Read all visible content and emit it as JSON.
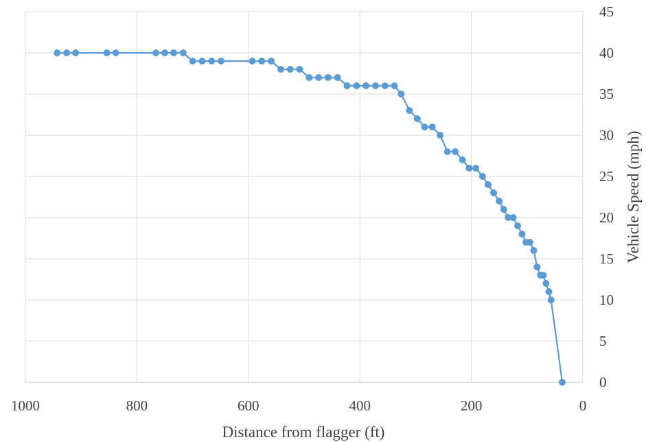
{
  "chart_data": {
    "type": "line",
    "title": "",
    "xlabel": "Distance from flagger (ft)",
    "ylabel": "Vehicle Speed (mph)",
    "xlim": [
      1000,
      0
    ],
    "x_reversed": true,
    "ylim": [
      0,
      45
    ],
    "x_ticks": [
      1000,
      800,
      600,
      400,
      200,
      0
    ],
    "y_ticks": [
      0,
      5,
      10,
      15,
      20,
      25,
      30,
      35,
      40,
      45
    ],
    "y_axis_side": "right",
    "grid": true,
    "legend": "none",
    "series_color": "#5b9bd5",
    "series": [
      {
        "points": [
          [
            943,
            40
          ],
          [
            926,
            40
          ],
          [
            910,
            40
          ],
          [
            854,
            40
          ],
          [
            838,
            40
          ],
          [
            766,
            40
          ],
          [
            750,
            40
          ],
          [
            734,
            40
          ],
          [
            717,
            40
          ],
          [
            700,
            39
          ],
          [
            683,
            39
          ],
          [
            666,
            39
          ],
          [
            649,
            39
          ],
          [
            593,
            39
          ],
          [
            576,
            39
          ],
          [
            559,
            39
          ],
          [
            542,
            38
          ],
          [
            525,
            38
          ],
          [
            508,
            38
          ],
          [
            491,
            37
          ],
          [
            474,
            37
          ],
          [
            457,
            37
          ],
          [
            440,
            37
          ],
          [
            423,
            36
          ],
          [
            406,
            36
          ],
          [
            389,
            36
          ],
          [
            372,
            36
          ],
          [
            355,
            36
          ],
          [
            338,
            36
          ],
          [
            326,
            35
          ],
          [
            311,
            33
          ],
          [
            297,
            32
          ],
          [
            284,
            31
          ],
          [
            270,
            31
          ],
          [
            256,
            30
          ],
          [
            243,
            28
          ],
          [
            229,
            28
          ],
          [
            216,
            27
          ],
          [
            204,
            26
          ],
          [
            192,
            26
          ],
          [
            180,
            25
          ],
          [
            170,
            24
          ],
          [
            160,
            23
          ],
          [
            150,
            22
          ],
          [
            142,
            21
          ],
          [
            134,
            20
          ],
          [
            125,
            20
          ],
          [
            117,
            19
          ],
          [
            109,
            18
          ],
          [
            102,
            17
          ],
          [
            95,
            17
          ],
          [
            88,
            16
          ],
          [
            82,
            14
          ],
          [
            76,
            13
          ],
          [
            71,
            13
          ],
          [
            66,
            12
          ],
          [
            61,
            11
          ],
          [
            57,
            10
          ],
          [
            37,
            0
          ]
        ]
      }
    ]
  }
}
